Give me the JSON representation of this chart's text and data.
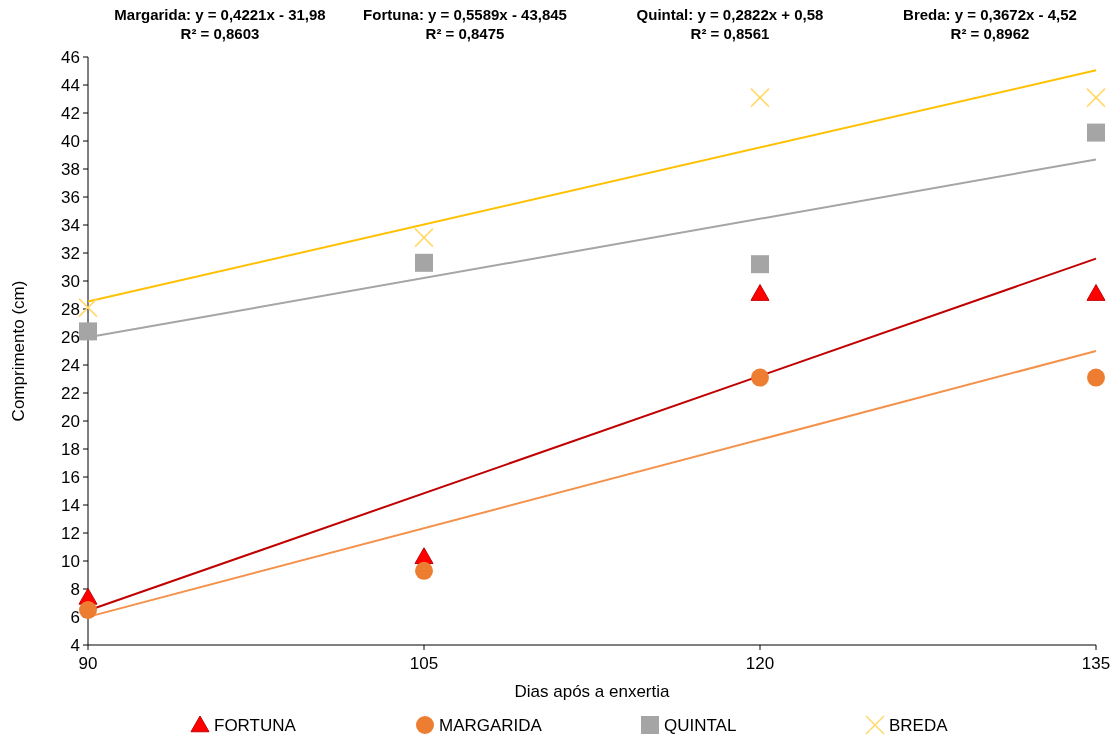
{
  "chart_data": {
    "type": "scatter",
    "xlabel": "Dias após a enxertia",
    "ylabel": "Comprimento (cm)",
    "xlim": [
      90,
      135
    ],
    "xticks": [
      90,
      105,
      120,
      135
    ],
    "ylim": [
      4,
      46
    ],
    "yticks": [
      4,
      6,
      8,
      10,
      12,
      14,
      16,
      18,
      20,
      22,
      24,
      26,
      28,
      30,
      32,
      34,
      36,
      38,
      40,
      42,
      44,
      46
    ],
    "grid": false,
    "legend": "bottom",
    "annotations": [
      "Margarida: y = 0,4221x - 31,98\nR² = 0,8603",
      "Fortuna: y = 0,5589x - 43,845\nR² = 0,8475",
      "Quintal: y = 0,2822x + 0,58\nR² = 0,8561",
      "Breda: y = 0,3672x - 4,52\nR² = 0,8962"
    ],
    "series": [
      {
        "type": "line",
        "color": "#ffc000",
        "x": [
          90,
          135
        ],
        "values": [
          28.53,
          45.05
        ],
        "marker": "none"
      },
      {
        "type": "line",
        "color": "#a5a5a5",
        "x": [
          90,
          135
        ],
        "values": [
          25.98,
          38.68
        ],
        "marker": "none"
      },
      {
        "type": "line",
        "color": "#c00000",
        "x": [
          90,
          135
        ],
        "values": [
          6.46,
          31.6
        ],
        "marker": "none"
      },
      {
        "type": "line",
        "color": "#f4914a",
        "x": [
          90,
          135
        ],
        "values": [
          6.01,
          25.0
        ],
        "marker": "none"
      },
      {
        "name": "FORTUNA",
        "color": "#ff0000",
        "marker": "triangle",
        "x": [
          90,
          105,
          120,
          135
        ],
        "values": [
          7.4,
          10.3,
          29.1,
          29.1
        ]
      },
      {
        "name": "MARGARIDA",
        "color": "#ed7d31",
        "marker": "circle",
        "x": [
          90,
          105,
          120,
          135
        ],
        "values": [
          6.5,
          9.3,
          23.1,
          23.1
        ]
      },
      {
        "name": "QUINTAL",
        "color": "#a5a5a5",
        "marker": "square",
        "x": [
          90,
          105,
          120,
          135
        ],
        "values": [
          26.4,
          31.3,
          31.2,
          40.6
        ]
      },
      {
        "name": "BREDA",
        "color": "#ffd966",
        "marker": "cross",
        "x": [
          90,
          105,
          120,
          135
        ],
        "values": [
          28.1,
          33.1,
          43.1,
          43.1
        ]
      }
    ]
  }
}
